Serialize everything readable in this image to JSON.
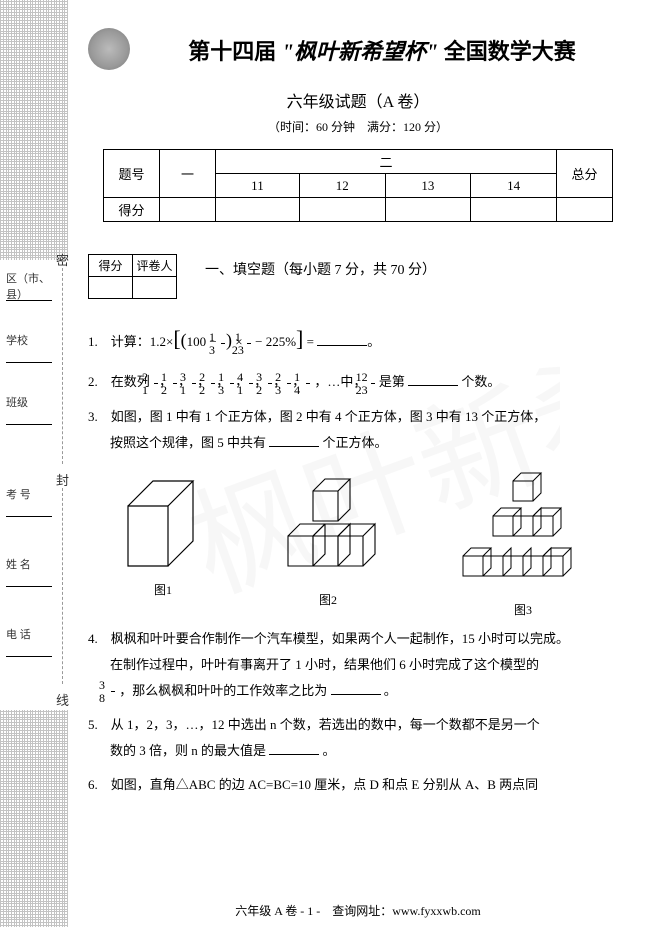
{
  "title": {
    "prefix": "第十四届",
    "script": "\"枫叶新希望杯\"",
    "suffix": "全国数学大赛"
  },
  "subtitle": "六年级试题（A 卷）",
  "meta": "（时间：60 分钟　满分：120 分）",
  "score_table": {
    "header_left": "题号",
    "row2_left": "得分",
    "col_one": "一",
    "col_two_header": "二",
    "cols_two": [
      "11",
      "12",
      "13",
      "14"
    ],
    "total": "总分"
  },
  "mini_table": {
    "score": "得分",
    "grader": "评卷人"
  },
  "section1_title": "一、填空题（每小题 7 分，共 70 分）",
  "sidebar": {
    "region": "区（市、县）",
    "school": "学校",
    "class": "班级",
    "exam_no": "考 号",
    "name": "姓 名",
    "phone": "电 话",
    "seal_chars": [
      "密",
      "封",
      "线"
    ]
  },
  "questions": {
    "q1_prefix": "1.　计算：1.2×",
    "q1_inner1_a": "100 −",
    "q1_frac1": {
      "num": "1",
      "den": "3"
    },
    "q1_mid": "×",
    "q1_frac2": {
      "num": "1",
      "den": "23"
    },
    "q1_tail": "− 225%",
    "q1_eq": " = ",
    "q2_prefix": "2.　在数列",
    "q2_seq": [
      {
        "num": "2",
        "den": "1"
      },
      {
        "num": "1",
        "den": "2"
      },
      {
        "num": "3",
        "den": "1"
      },
      {
        "num": "2",
        "den": "2"
      },
      {
        "num": "1",
        "den": "3"
      },
      {
        "num": "4",
        "den": "1"
      },
      {
        "num": "3",
        "den": "2"
      },
      {
        "num": "2",
        "den": "3"
      },
      {
        "num": "1",
        "den": "4"
      }
    ],
    "q2_mid": "，…中，",
    "q2_target": {
      "num": "12",
      "den": "23"
    },
    "q2_tail": " 是第",
    "q2_end": "个数。",
    "q3_line1": "3.　如图，图 1 中有 1 个正方体，图 2 中有 4 个正方体，图 3 中有 13 个正方体，",
    "q3_line2": "按照这个规律，图 5 中共有",
    "q3_end": "个正方体。",
    "fig_labels": [
      "图1",
      "图2",
      "图3"
    ],
    "q4_line1": "4.　枫枫和叶叶要合作制作一个汽车模型，如果两个人一起制作，15 小时可以完成。",
    "q4_line2": "在制作过程中，叶叶有事离开了 1 小时，结果他们 6 小时完成了这个模型的",
    "q4_frac": {
      "num": "3",
      "den": "8"
    },
    "q4_tail": "，那么枫枫和叶叶的工作效率之比为",
    "q4_end": "。",
    "q5_line1": "5.　从 1，2，3，…，12 中选出 n 个数，若选出的数中，每一个数都不是另一个",
    "q5_line2": "数的 3 倍，则 n 的最大值是",
    "q5_end": "。",
    "q6_line1": "6.　如图，直角△ABC 的边 AC=BC=10 厘米，点 D 和点 E 分别从 A、B 两点同"
  },
  "footer": {
    "text": "六年级 A 卷 - 1 -　查询网址：www.fyxxwb.com"
  },
  "colors": {
    "text": "#000000",
    "bg": "#ffffff",
    "border": "#000000",
    "watermark": "#cccccc"
  }
}
